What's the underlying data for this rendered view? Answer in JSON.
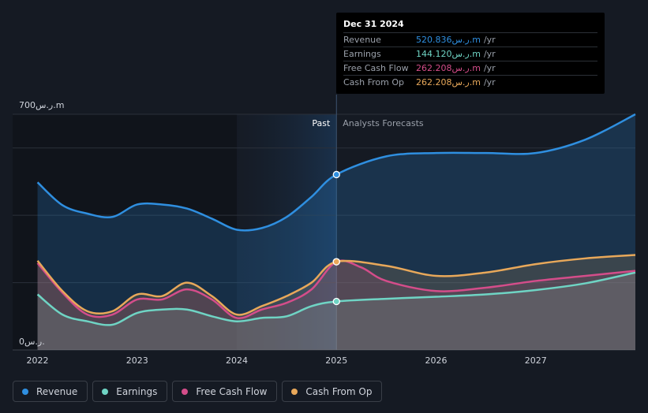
{
  "chart_data": {
    "type": "area",
    "y_axis": {
      "top_label": "700ر.س.m",
      "bottom_label": "0ر.س.",
      "ylim": [
        0,
        700
      ]
    },
    "x_ticks": [
      "2022",
      "2023",
      "2024",
      "2025",
      "2026",
      "2027"
    ],
    "x_tick_values": [
      2022.0,
      2023.0,
      2024.0,
      2025.0,
      2026.0,
      2027.0
    ],
    "xlim": [
      2021.75,
      2028.0
    ],
    "past_label": "Past",
    "forecast_label": "Analysts Forecasts",
    "divider_x": 2025.0,
    "highlight_start_x": 2024.0,
    "series": [
      {
        "name": "Revenue",
        "color": "#2f8fe0",
        "x": [
          2022.0,
          2022.25,
          2022.5,
          2022.75,
          2023.0,
          2023.25,
          2023.5,
          2023.75,
          2024.0,
          2024.25,
          2024.5,
          2024.75,
          2025.0,
          2025.5,
          2026.0,
          2026.5,
          2027.0,
          2027.5,
          2028.0
        ],
        "y": [
          498,
          430,
          405,
          395,
          432,
          432,
          420,
          390,
          357,
          362,
          395,
          455,
          521,
          575,
          585,
          585,
          585,
          625,
          700
        ]
      },
      {
        "name": "Earnings",
        "color": "#6fd4c4",
        "x": [
          2022.0,
          2022.25,
          2022.5,
          2022.75,
          2023.0,
          2023.25,
          2023.5,
          2023.75,
          2024.0,
          2024.25,
          2024.5,
          2024.75,
          2025.0,
          2025.5,
          2026.0,
          2026.5,
          2027.0,
          2027.5,
          2028.0
        ],
        "y": [
          165,
          105,
          85,
          75,
          110,
          120,
          120,
          100,
          85,
          95,
          100,
          130,
          144,
          152,
          158,
          165,
          178,
          198,
          230
        ]
      },
      {
        "name": "Free Cash Flow",
        "color": "#d44d8a",
        "x": [
          2022.0,
          2022.25,
          2022.5,
          2022.75,
          2023.0,
          2023.25,
          2023.5,
          2023.75,
          2024.0,
          2024.25,
          2024.5,
          2024.75,
          2025.0,
          2025.25,
          2025.5,
          2026.0,
          2026.5,
          2027.0,
          2027.5,
          2028.0
        ],
        "y": [
          258,
          170,
          105,
          105,
          150,
          150,
          180,
          150,
          95,
          120,
          140,
          180,
          262,
          245,
          205,
          175,
          185,
          205,
          220,
          235
        ]
      },
      {
        "name": "Cash From Op",
        "color": "#e8a85a",
        "x": [
          2022.0,
          2022.25,
          2022.5,
          2022.75,
          2023.0,
          2023.25,
          2023.5,
          2023.75,
          2024.0,
          2024.25,
          2024.5,
          2024.75,
          2025.0,
          2025.5,
          2026.0,
          2026.5,
          2027.0,
          2027.5,
          2028.0
        ],
        "y": [
          265,
          175,
          115,
          115,
          165,
          160,
          200,
          160,
          105,
          130,
          160,
          200,
          262,
          250,
          220,
          230,
          255,
          272,
          282
        ]
      }
    ],
    "markers_at": 2025.0
  },
  "tooltip": {
    "date": "Dec 31 2024",
    "rows": [
      {
        "label": "Revenue",
        "value": "520.836ر.س.m",
        "unit": "/yr",
        "color": "#2f8fe0"
      },
      {
        "label": "Earnings",
        "value": "144.120ر.س.m",
        "unit": "/yr",
        "color": "#6fd4c4"
      },
      {
        "label": "Free Cash Flow",
        "value": "262.208ر.س.m",
        "unit": "/yr",
        "color": "#d44d8a"
      },
      {
        "label": "Cash From Op",
        "value": "262.208ر.س.m",
        "unit": "/yr",
        "color": "#e8a85a"
      }
    ]
  },
  "legend": [
    {
      "label": "Revenue",
      "color": "#2f8fe0"
    },
    {
      "label": "Earnings",
      "color": "#6fd4c4"
    },
    {
      "label": "Free Cash Flow",
      "color": "#d44d8a"
    },
    {
      "label": "Cash From Op",
      "color": "#e8a85a"
    }
  ]
}
